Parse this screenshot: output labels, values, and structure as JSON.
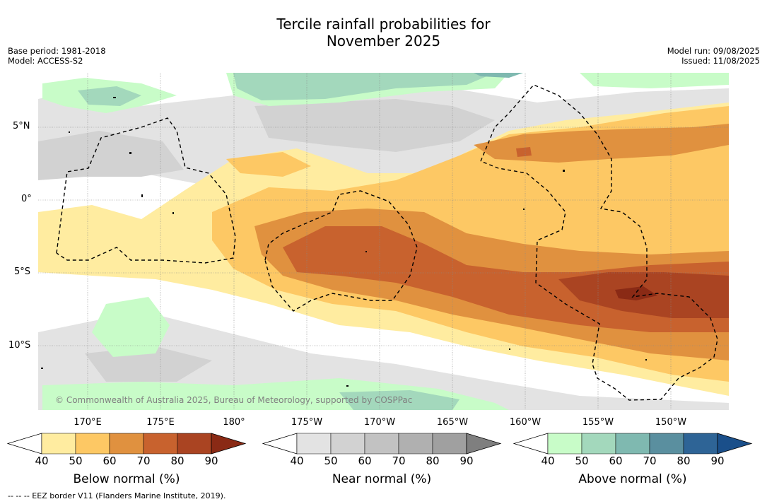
{
  "header": {
    "title_line1": "Tercile rainfall probabilities for",
    "title_line2": "November 2025",
    "base_period": "Base period: 1981-2018",
    "model": "Model: ACCESS-S2",
    "model_run": "Model run: 09/08/2025",
    "issued": "Issued: 11/08/2025"
  },
  "map": {
    "lat_labels": [
      "5°N",
      "0°",
      "5°S",
      "10°S"
    ],
    "lon_labels": [
      "170°E",
      "175°E",
      "180°",
      "175°W",
      "170°W",
      "165°W",
      "160°W",
      "155°W",
      "150°W"
    ],
    "copyright": "© Commonwealth of Australia 2025, Bureau of Meteorology, supported by COSPPac",
    "eez_note": "--  --  -- EEZ border V11 (Flanders Marine Institute, 2019)."
  },
  "legend": {
    "colorbars": [
      {
        "label": "Below normal (%)",
        "ticks": [
          "40",
          "50",
          "60",
          "70",
          "80",
          "90"
        ],
        "colors": [
          "#ffeca0",
          "#fdc864",
          "#e0913f",
          "#c8622e",
          "#aa4422",
          "#8a2a15"
        ]
      },
      {
        "label": "Near normal (%)",
        "ticks": [
          "40",
          "50",
          "60",
          "70",
          "80",
          "90"
        ],
        "colors": [
          "#e3e3e3",
          "#d2d2d2",
          "#c2c2c2",
          "#b0b0b0",
          "#a0a0a0",
          "#7f7f7f"
        ]
      },
      {
        "label": "Above normal (%)",
        "ticks": [
          "40",
          "50",
          "60",
          "70",
          "80",
          "90"
        ],
        "colors": [
          "#c8fcc8",
          "#a3d8bc",
          "#7fb9b0",
          "#5a8f9f",
          "#2e6496",
          "#1a4f8a"
        ]
      }
    ]
  }
}
